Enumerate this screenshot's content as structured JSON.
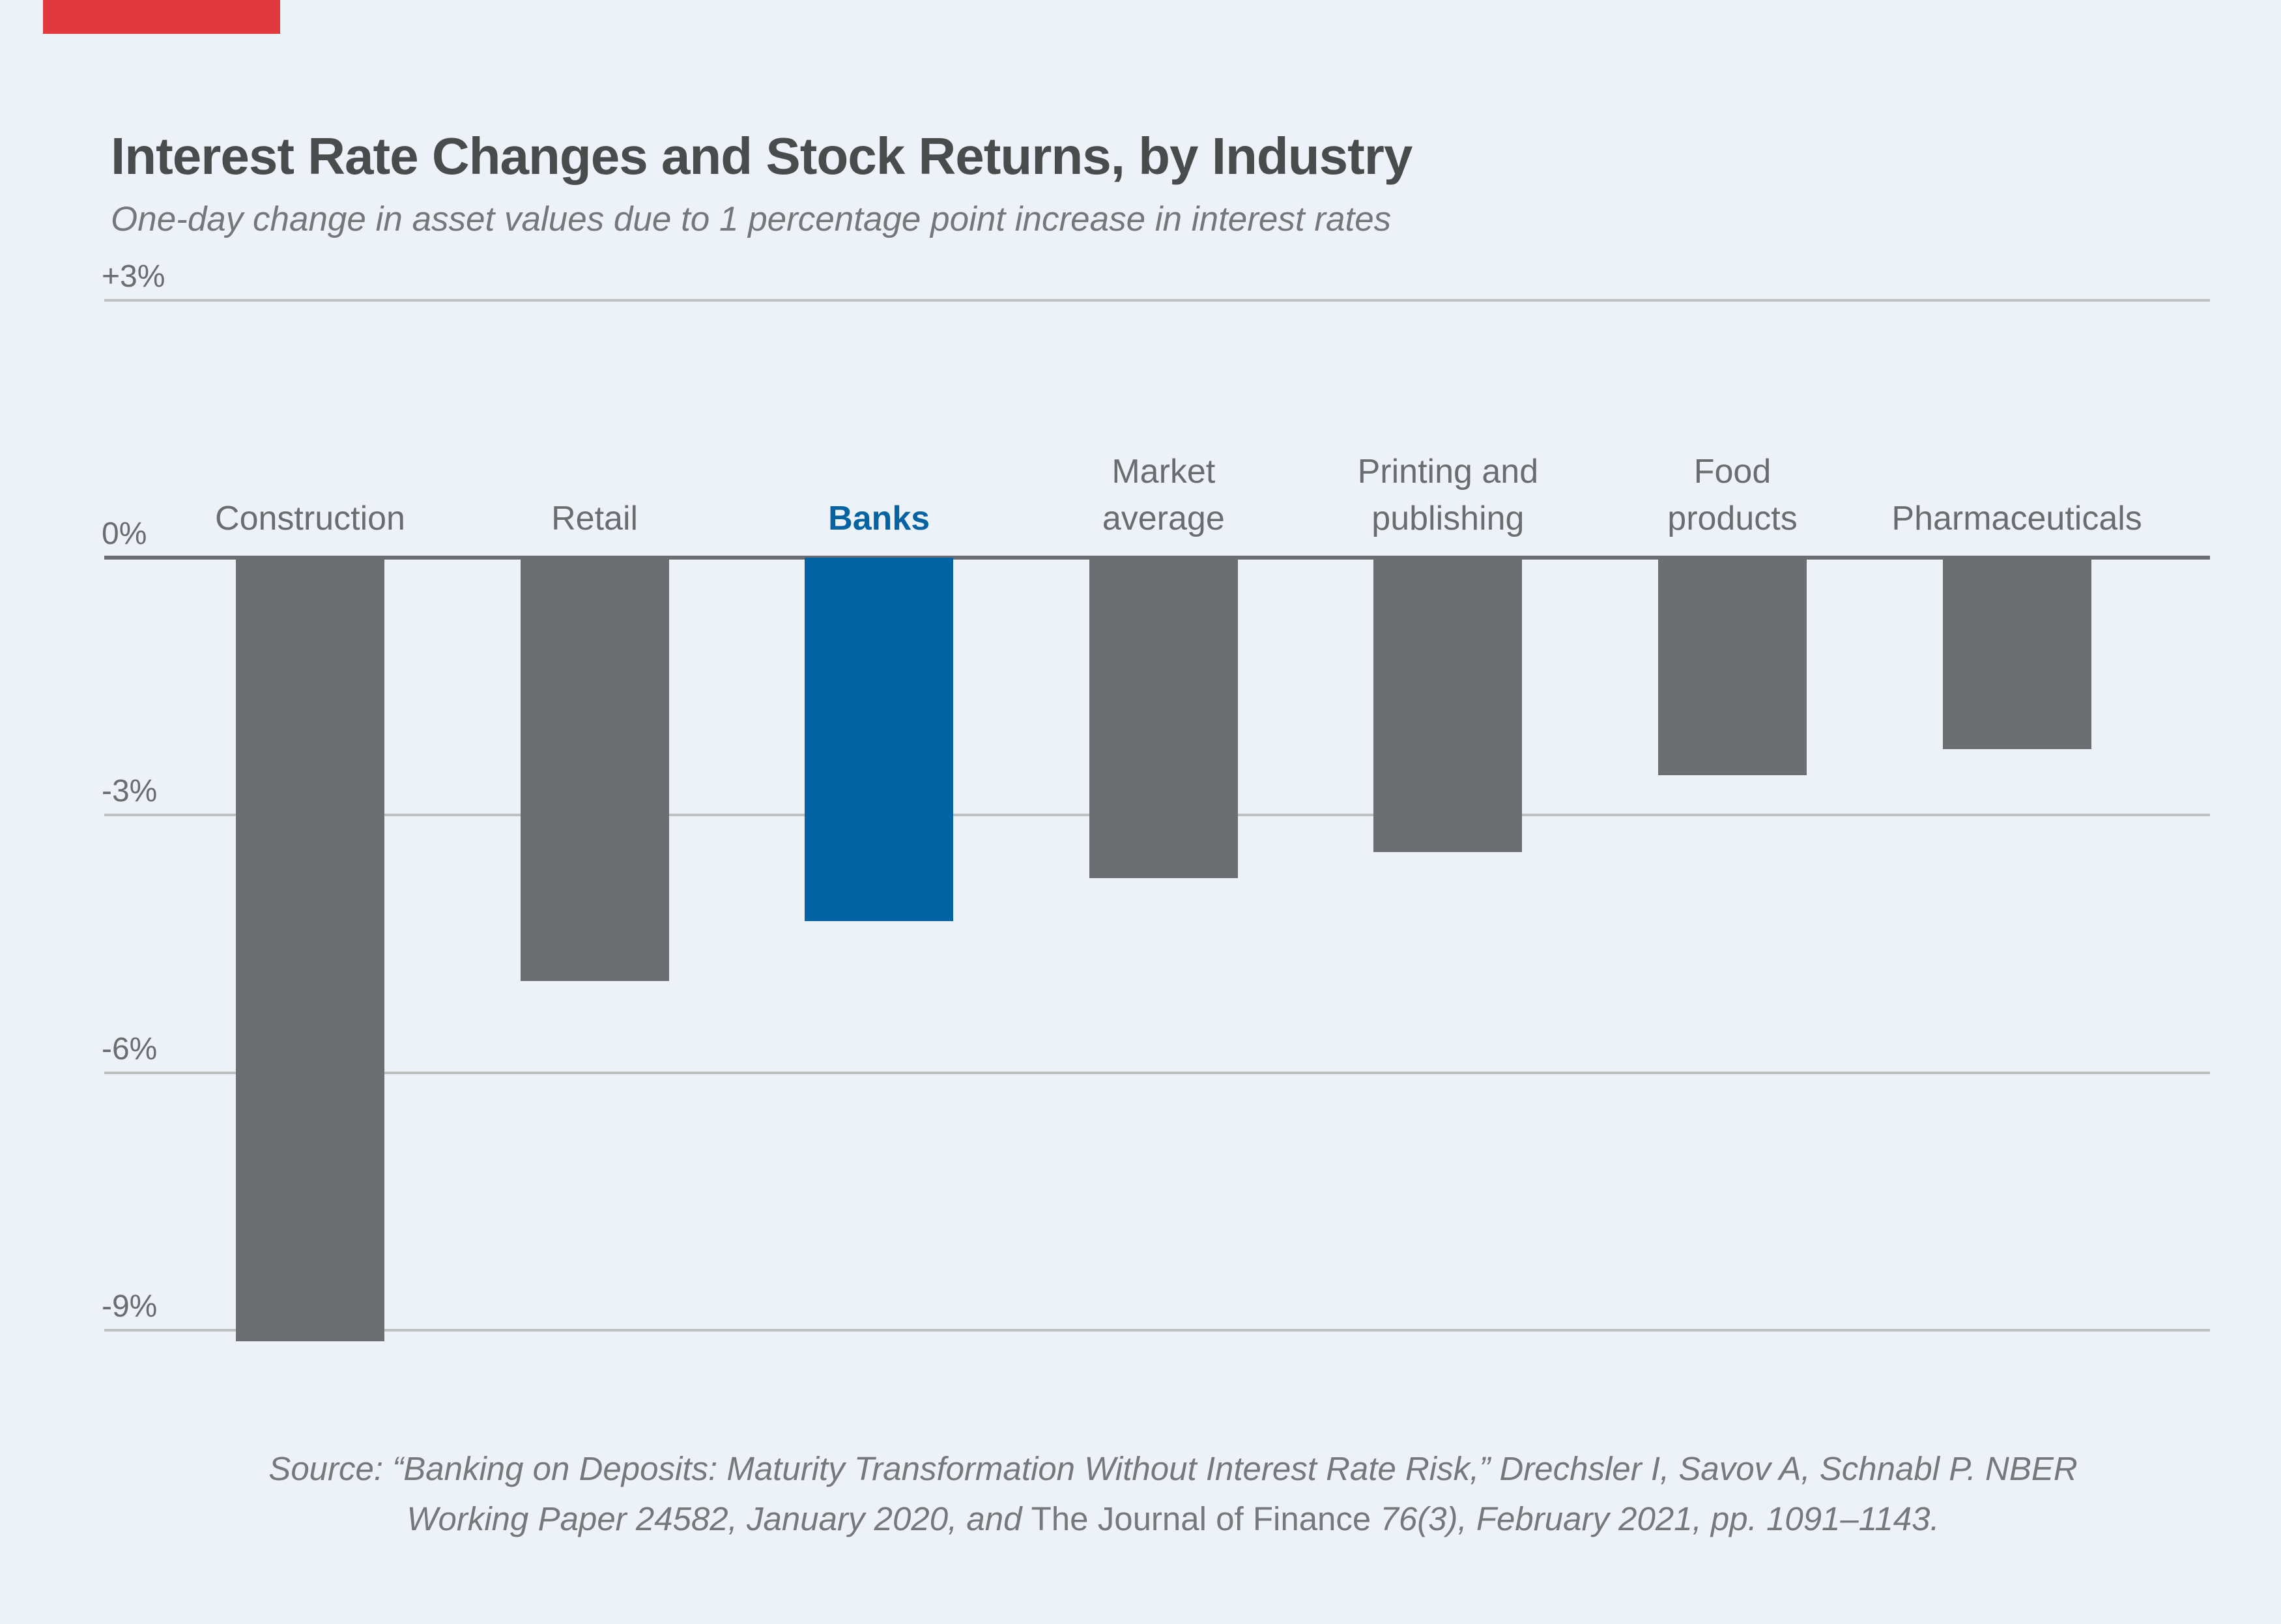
{
  "page": {
    "background_color": "#edf2f8",
    "accent_bar_color": "#e13a3e"
  },
  "header": {
    "title": "Interest Rate Changes and Stock Returns, by Industry",
    "subtitle": "One-day change in asset values due to 1 percentage point increase in interest rates"
  },
  "chart_data": {
    "type": "bar",
    "title": "Interest Rate Changes and Stock Returns, by Industry",
    "subtitle": "One-day change in asset values due to 1 percentage point increase in interest rates",
    "categories": [
      "Construction",
      "Retail",
      "Banks",
      "Market average",
      "Printing and publishing",
      "Food products",
      "Pharmaceuticals"
    ],
    "category_lines": [
      [
        "Construction"
      ],
      [
        "Retail"
      ],
      [
        "Banks"
      ],
      [
        "Market",
        "average"
      ],
      [
        "Printing and",
        "publishing"
      ],
      [
        "Food",
        "products"
      ],
      [
        "Pharmaceuticals"
      ]
    ],
    "values": [
      -9.1,
      -4.9,
      -4.2,
      -3.7,
      -3.4,
      -2.5,
      -2.2
    ],
    "unit": "%",
    "highlight_index": 2,
    "bar_color": "#6d6e71",
    "highlight_color": "#0464a3",
    "yticks": [
      {
        "label": "+3%",
        "value": 3
      },
      {
        "label": "0%",
        "value": 0
      },
      {
        "label": "-3%",
        "value": -3
      },
      {
        "label": "-6%",
        "value": -6
      },
      {
        "label": "-9%",
        "value": -9
      }
    ],
    "ylim": [
      3,
      -9.5
    ],
    "grid": true,
    "legend": "none",
    "xlabel": "",
    "ylabel": ""
  },
  "source": {
    "line1": "Source: “Banking on Deposits: Maturity Transformation Without Interest Rate Risk,” Drechsler I, Savov A, Schnabl P. NBER",
    "line2_prefix": "Working Paper 24582, January 2020, and ",
    "line2_journal": "The Journal of Finance",
    "line2_suffix": " 76(3), February 2021, pp. 1091–1143."
  }
}
